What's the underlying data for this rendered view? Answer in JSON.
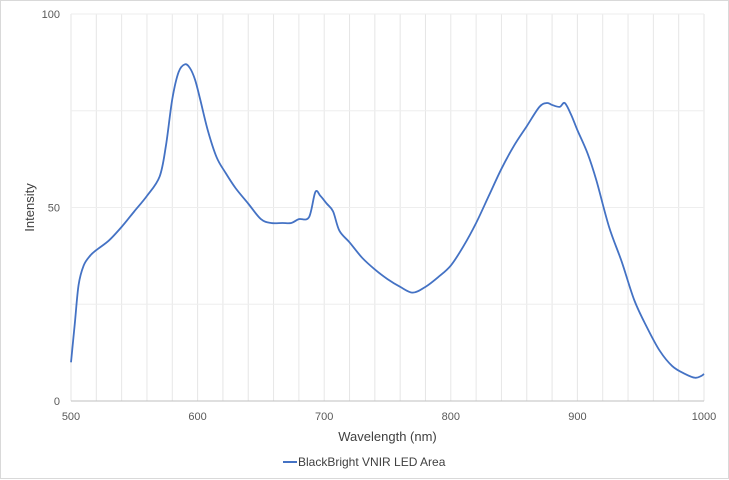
{
  "chart_data": {
    "type": "line",
    "title": "",
    "xlabel": "Wavelength (nm)",
    "ylabel": "Intensity",
    "xlim": [
      500,
      1000
    ],
    "ylim": [
      0,
      100
    ],
    "x_ticks": [
      500,
      600,
      700,
      800,
      900,
      1000
    ],
    "y_ticks": [
      0,
      50,
      100
    ],
    "grid": {
      "vertical_minor_step": 20,
      "horizontal_step": 25
    },
    "legend_position": "bottom",
    "series": [
      {
        "name": "BlackBright VNIR LED Area",
        "color": "#4472c4",
        "x": [
          500,
          503,
          506,
          510,
          515,
          520,
          530,
          540,
          550,
          560,
          570,
          575,
          580,
          585,
          590,
          594,
          598,
          602,
          608,
          615,
          622,
          630,
          640,
          650,
          658,
          667,
          674,
          680,
          688,
          693,
          697,
          702,
          707,
          712,
          720,
          730,
          740,
          750,
          760,
          770,
          780,
          790,
          800,
          810,
          820,
          830,
          840,
          850,
          860,
          870,
          876,
          880,
          886,
          890,
          895,
          900,
          908,
          915,
          925,
          935,
          945,
          955,
          965,
          975,
          985,
          993,
          998,
          1000
        ],
        "y": [
          10,
          20,
          30,
          35,
          37.5,
          39,
          41.5,
          45,
          49,
          53,
          58,
          66,
          78,
          85,
          87,
          86,
          83,
          78,
          70,
          63,
          59,
          55,
          51,
          47,
          46,
          46,
          46,
          47,
          47.5,
          54,
          53,
          51,
          49,
          44,
          41,
          37,
          34,
          31.5,
          29.5,
          28,
          29.5,
          32,
          35,
          40,
          46,
          53,
          60,
          66,
          71,
          76,
          77,
          76.5,
          76,
          77,
          74,
          70,
          64,
          57,
          45,
          36,
          26,
          19,
          13,
          9,
          7,
          6,
          6.5,
          7
        ]
      }
    ]
  }
}
